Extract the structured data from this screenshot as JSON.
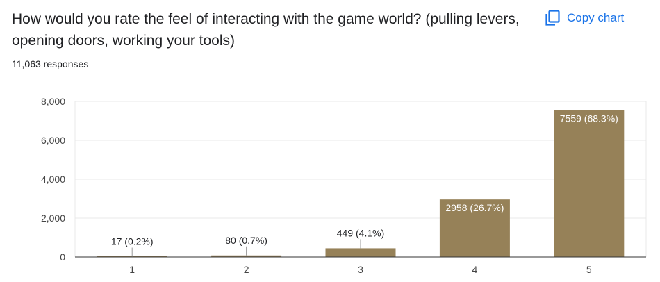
{
  "question": {
    "title": "How would you rate the feel of interacting with the game world? (pulling levers, opening doors, working your tools)",
    "responses": "11,063 responses"
  },
  "copy_button": {
    "label": "Copy chart",
    "icon": "copy-icon"
  },
  "colors": {
    "bar": "#968158",
    "accent": "#1a73e8",
    "text": "#202124",
    "axis_text": "#444444",
    "gridline": "#e8e8e8"
  },
  "chart_data": {
    "type": "bar",
    "categories": [
      "1",
      "2",
      "3",
      "4",
      "5"
    ],
    "values": [
      17,
      80,
      449,
      2958,
      7559
    ],
    "labels": [
      "17 (0.2%)",
      "80 (0.7%)",
      "449 (4.1%)",
      "2958 (26.7%)",
      "7559 (68.3%)"
    ],
    "yticks": [
      "0",
      "2,000",
      "4,000",
      "6,000",
      "8,000"
    ],
    "ytick_values": [
      0,
      2000,
      4000,
      6000,
      8000
    ],
    "ylim": [
      0,
      8000
    ],
    "grid": true,
    "legend": "none"
  }
}
